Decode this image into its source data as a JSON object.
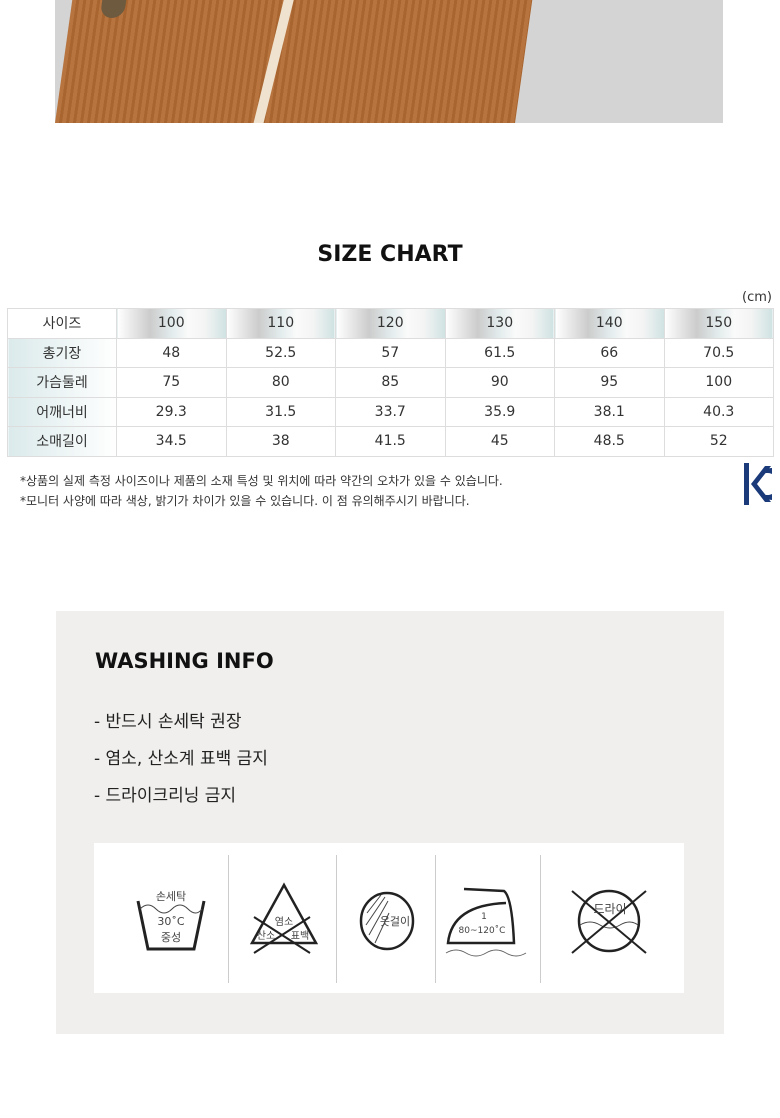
{
  "size_chart": {
    "title": "SIZE CHART",
    "unit": "(cm)",
    "header": [
      "사이즈",
      "100",
      "110",
      "120",
      "130",
      "140",
      "150"
    ],
    "rows": [
      [
        "총기장",
        "48",
        "52.5",
        "57",
        "61.5",
        "66",
        "70.5"
      ],
      [
        "가슴둘레",
        "75",
        "80",
        "85",
        "90",
        "95",
        "100"
      ],
      [
        "어깨너비",
        "29.3",
        "31.5",
        "33.7",
        "35.9",
        "38.1",
        "40.3"
      ],
      [
        "소매길이",
        "34.5",
        "38",
        "41.5",
        "45",
        "48.5",
        "52"
      ]
    ],
    "notes": [
      "*상품의 실제 측정 사이즈이나 제품의 소재 특성 및 위치에 따라 약간의 오차가 있을 수 있습니다.",
      "*모니터 사양에 따라 색상, 밝기가 차이가 있을 수 있습니다. 이 점 유의해주시기 바랍니다."
    ],
    "kc_mark": "KC"
  },
  "washing": {
    "title": "WASHING INFO",
    "items": [
      "-  반드시 손세탁 권장",
      "-  염소, 산소계 표백 금지",
      "-  드라이크리닝 금지"
    ],
    "icons": {
      "hand_wash": [
        "손세탁",
        "30˚C",
        "중성"
      ],
      "no_bleach": [
        "염소",
        "산소",
        "표백"
      ],
      "hang_dry": "옷걸이",
      "iron": [
        "1",
        "80~120˚C"
      ],
      "no_dry": "드라이"
    }
  }
}
